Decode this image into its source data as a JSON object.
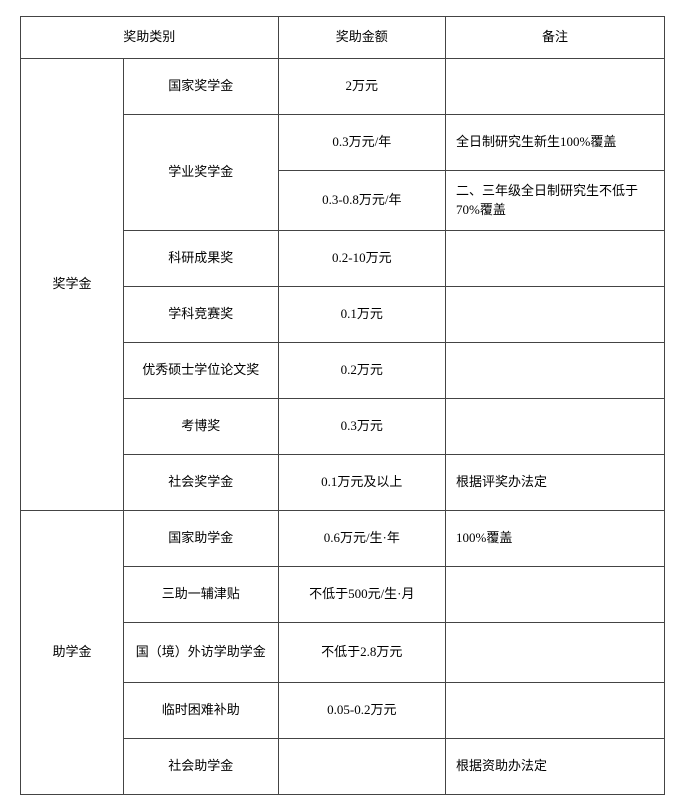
{
  "table": {
    "headers": {
      "category": "奖助类别",
      "amount": "奖助金额",
      "note": "备注"
    },
    "group1": {
      "name": "奖学金",
      "rows": [
        {
          "sub": "国家奖学金",
          "amount": "2万元",
          "note": ""
        },
        {
          "sub": "学业奖学金",
          "amount": "0.3万元/年",
          "note": "全日制研究生新生100%覆盖"
        },
        {
          "sub": "",
          "amount": "0.3-0.8万元/年",
          "note": "二、三年级全日制研究生不低于70%覆盖"
        },
        {
          "sub": "科研成果奖",
          "amount": "0.2-10万元",
          "note": ""
        },
        {
          "sub": "学科竞赛奖",
          "amount": "0.1万元",
          "note": ""
        },
        {
          "sub": "优秀硕士学位论文奖",
          "amount": "0.2万元",
          "note": ""
        },
        {
          "sub": "考博奖",
          "amount": "0.3万元",
          "note": ""
        },
        {
          "sub": "社会奖学金",
          "amount": "0.1万元及以上",
          "note": "根据评奖办法定"
        }
      ]
    },
    "group2": {
      "name": "助学金",
      "rows": [
        {
          "sub": "国家助学金",
          "amount": "0.6万元/生·年",
          "note": "100%覆盖"
        },
        {
          "sub": "三助一辅津贴",
          "amount": "不低于500元/生·月",
          "note": ""
        },
        {
          "sub": "国（境）外访学助学金",
          "amount": "不低于2.8万元",
          "note": ""
        },
        {
          "sub": "临时困难补助",
          "amount": "0.05-0.2万元",
          "note": ""
        },
        {
          "sub": "社会助学金",
          "amount": "",
          "note": "根据资助办法定"
        }
      ]
    }
  },
  "style": {
    "fontSize": 13,
    "borderColor": "#444444",
    "background": "#ffffff"
  }
}
